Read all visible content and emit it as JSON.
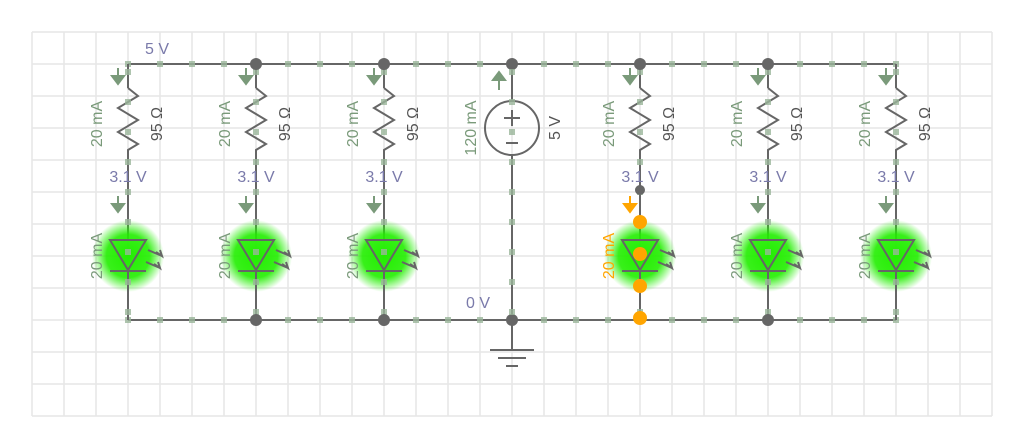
{
  "colors": {
    "wire": "#666666",
    "current": "#7a9a7a",
    "voltage": "#7a7aaa",
    "led_glow": "#22ee00",
    "selected": "#ffa500",
    "grid": "#e6e6e6",
    "label": "#555555"
  },
  "rails": {
    "top_voltage": "5 V",
    "bottom_voltage": "0 V"
  },
  "source": {
    "current": "120 mA",
    "voltage": "5 V"
  },
  "branches": [
    {
      "resistor_current": "20 mA",
      "resistance": "95 Ω",
      "node_voltage": "3.1 V",
      "led_current": "20 mA",
      "selected": false
    },
    {
      "resistor_current": "20 mA",
      "resistance": "95 Ω",
      "node_voltage": "3.1 V",
      "led_current": "20 mA",
      "selected": false
    },
    {
      "resistor_current": "20 mA",
      "resistance": "95 Ω",
      "node_voltage": "3.1 V",
      "led_current": "20 mA",
      "selected": false
    },
    {
      "resistor_current": "20 mA",
      "resistance": "95 Ω",
      "node_voltage": "3.1 V",
      "led_current": "20 mA",
      "selected": true
    },
    {
      "resistor_current": "20 mA",
      "resistance": "95 Ω",
      "node_voltage": "3.1 V",
      "led_current": "20 mA",
      "selected": false
    },
    {
      "resistor_current": "20 mA",
      "resistance": "95 Ω",
      "node_voltage": "3.1 V",
      "led_current": "20 mA",
      "selected": false
    }
  ]
}
